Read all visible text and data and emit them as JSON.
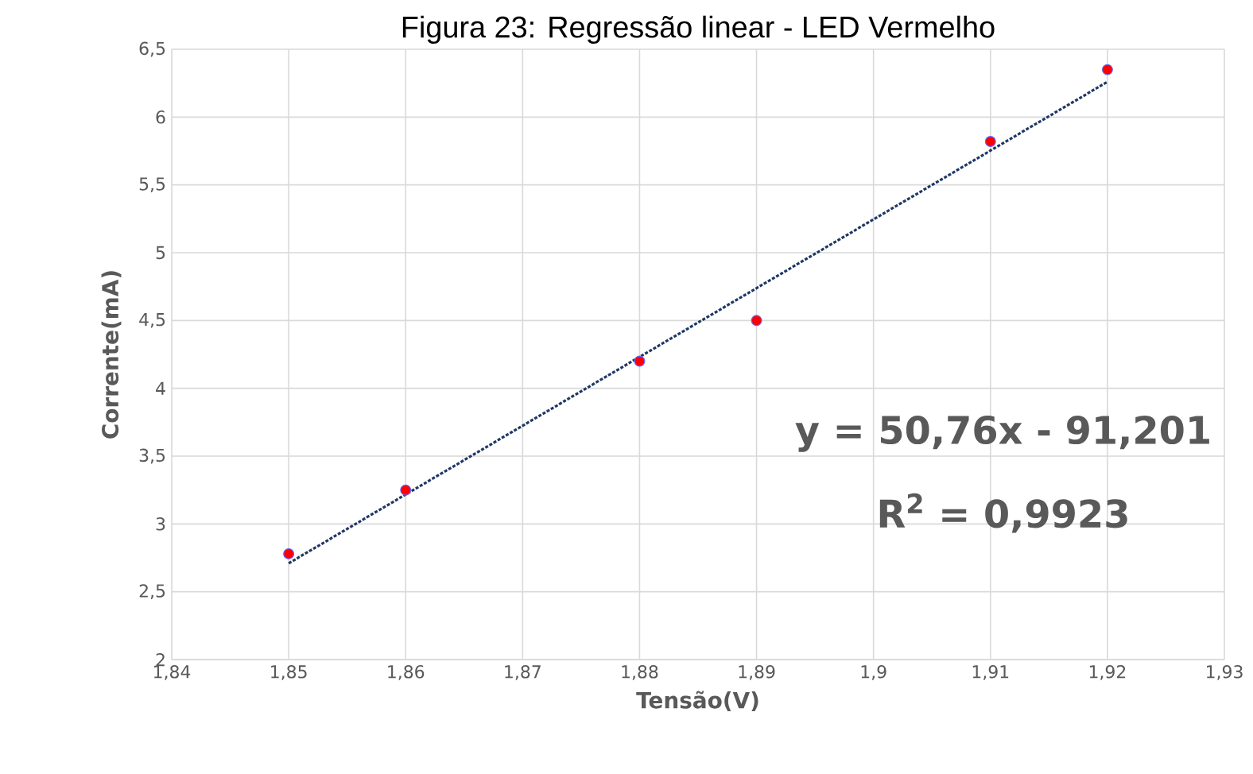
{
  "chart_data": {
    "type": "scatter",
    "title": "Figura 23: Regressão linear - LED Vermelho",
    "xlabel": "Tensão(V)",
    "ylabel": "Corrente(mA)",
    "x": [
      1.85,
      1.86,
      1.88,
      1.89,
      1.91,
      1.92
    ],
    "series": [
      {
        "color": "#ff0000",
        "marker": "circle",
        "values": [
          2.78,
          3.25,
          4.2,
          4.5,
          5.82,
          6.35
        ]
      },
      {
        "type": "line",
        "color": "#1f3864",
        "line_style": "dashed",
        "marker": "none",
        "x": [
          1.85,
          1.92
        ],
        "values": [
          2.71,
          6.26
        ]
      }
    ],
    "xlim": [
      1.84,
      1.93
    ],
    "xticks": [
      {
        "value": 1.84,
        "label": "1,84"
      },
      {
        "value": 1.85,
        "label": "1,85"
      },
      {
        "value": 1.86,
        "label": "1,86"
      },
      {
        "value": 1.87,
        "label": "1,87"
      },
      {
        "value": 1.88,
        "label": "1,88"
      },
      {
        "value": 1.89,
        "label": "1,89"
      },
      {
        "value": 1.9,
        "label": "1,9"
      },
      {
        "value": 1.91,
        "label": "1,91"
      },
      {
        "value": 1.92,
        "label": "1,92"
      },
      {
        "value": 1.93,
        "label": "1,93"
      }
    ],
    "ylim": [
      2,
      6.5
    ],
    "yticks": [
      2,
      {
        "value": 2.5,
        "label": "2,5"
      },
      3,
      {
        "value": 3.5,
        "label": "3,5"
      },
      4,
      {
        "value": 4.5,
        "label": "4,5"
      },
      5,
      {
        "value": 5.5,
        "label": "5,5"
      },
      6,
      {
        "value": 6.5,
        "label": "6,5"
      }
    ],
    "grid": true,
    "annotations": [
      "y = 50,76x - 91,201",
      "R$^{2}$ = 0,9923"
    ]
  }
}
